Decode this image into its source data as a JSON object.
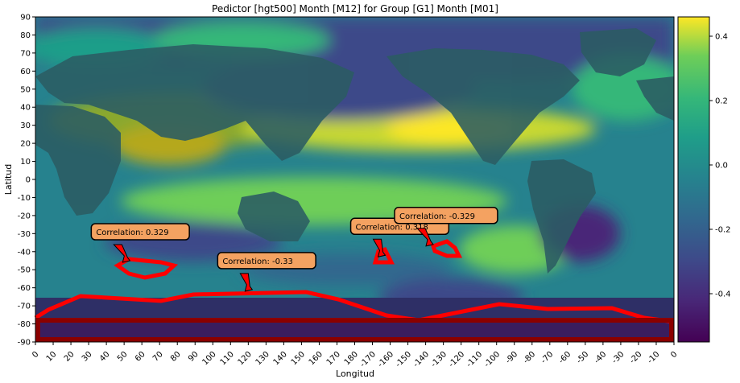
{
  "chart_data": {
    "type": "heatmap",
    "title": "Pedictor [hgt500] Month [M12] for Group [G1] Month [M01]",
    "xlabel": "Longitud",
    "ylabel": "Latitud",
    "x_tick_labels": [
      "0",
      "10",
      "20",
      "30",
      "40",
      "50",
      "60",
      "70",
      "80",
      "90",
      "100",
      "110",
      "120",
      "130",
      "140",
      "150",
      "160",
      "170",
      "180",
      "-170",
      "-160",
      "-150",
      "-140",
      "-130",
      "-120",
      "-110",
      "-100",
      "-90",
      "-80",
      "-70",
      "-60",
      "-50",
      "-40",
      "-30",
      "-20",
      "-10",
      "0"
    ],
    "y_tick_labels": [
      "90",
      "80",
      "70",
      "60",
      "50",
      "40",
      "30",
      "20",
      "10",
      "0",
      "-10",
      "-20",
      "-30",
      "-40",
      "-50",
      "-60",
      "-70",
      "-80",
      "-90"
    ],
    "colorbar": {
      "colormap": "viridis",
      "range": [
        -0.55,
        0.46
      ],
      "ticks": [
        -0.4,
        -0.2,
        0.0,
        0.2,
        0.4
      ],
      "tick_labels": [
        "-0.4",
        "-0.2",
        "0.0",
        "0.2",
        "0.4"
      ]
    },
    "annotations": [
      {
        "text": "Correlation: 0.329",
        "lon": 51,
        "lat": -45
      },
      {
        "text": "Correlation: -0.33",
        "lon": 120,
        "lat": -61
      },
      {
        "text": "Correlation: 0.318",
        "lon": 195,
        "lat": -42
      },
      {
        "text": "Correlation: -0.329",
        "lon": 222,
        "lat": -36
      }
    ],
    "colors": {
      "highlight_regions": "#ff0000",
      "annotation_box": "#f4a261",
      "antarctic_band": "#8b0000"
    }
  }
}
